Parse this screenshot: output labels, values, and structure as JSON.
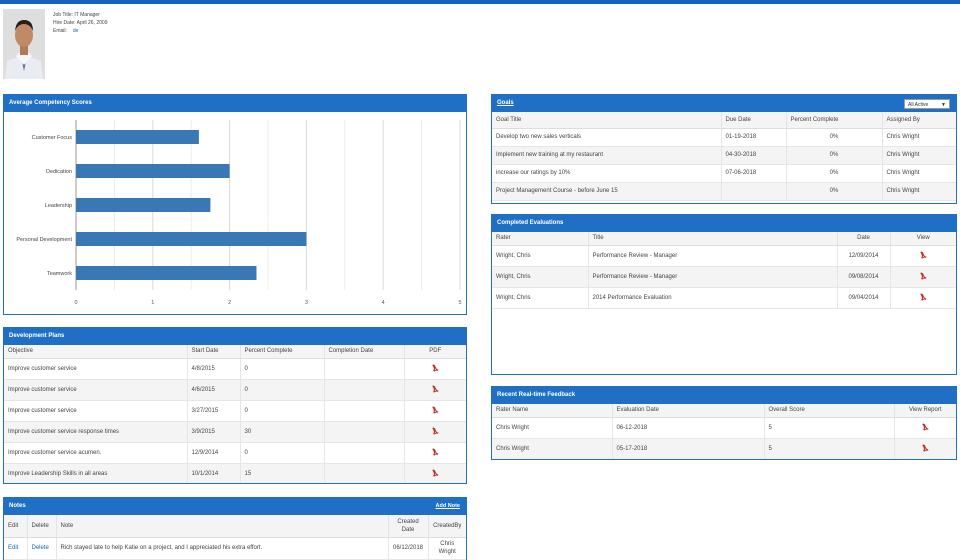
{
  "profile": {
    "job_title": "Job Title:  IT Manager",
    "hire_date": "Hire Date: April 26, 2009",
    "email_label": "Email:",
    "email_link": "de"
  },
  "competency": {
    "title": "Average Competency Scores"
  },
  "chart_data": {
    "type": "bar",
    "orientation": "horizontal",
    "title": "Average Competency Scores",
    "categories": [
      "Customer Focus",
      "Dedication",
      "Leadership",
      "Personal Development",
      "Teamwork"
    ],
    "values": [
      1.6,
      2.0,
      1.75,
      3.0,
      2.35
    ],
    "xlim": [
      0,
      5
    ],
    "xticks": [
      "0",
      "1",
      "2",
      "3",
      "4",
      "5"
    ],
    "grid": true,
    "bar_color": "#3a78b5"
  },
  "dev_plans": {
    "title": "Development Plans",
    "headers": [
      "Objective",
      "Start Date",
      "Percent Complete",
      "Completion Date",
      "PDF"
    ],
    "rows": [
      {
        "objective": "Improve customer service",
        "start": "4/8/2015",
        "pct": "0",
        "done": ""
      },
      {
        "objective": "Improve customer service",
        "start": "4/6/2015",
        "pct": "0",
        "done": ""
      },
      {
        "objective": "Improve customer service",
        "start": "3/27/2015",
        "pct": "0",
        "done": ""
      },
      {
        "objective": "Improve customer service response times",
        "start": "3/9/2015",
        "pct": "30",
        "done": ""
      },
      {
        "objective": "Improve customer service acumen.",
        "start": "12/9/2014",
        "pct": "0",
        "done": ""
      },
      {
        "objective": "Improve Leadership Skills in all areas",
        "start": "10/1/2014",
        "pct": "15",
        "done": ""
      }
    ]
  },
  "notes": {
    "title": "Notes",
    "add_link": "Add Note",
    "headers": [
      "Edit",
      "Delete",
      "Note",
      "Created Date",
      "CreatedBy"
    ],
    "rows": [
      {
        "edit": "Edit",
        "delete": "Delete",
        "note": "Rich stayed late to help Katie on a project, and I appreciated his extra effort.",
        "date": "06/12/2018",
        "by": "Chris Wright"
      }
    ]
  },
  "goals": {
    "title": "Goals",
    "filter_value": "All Active",
    "headers": [
      "Goal Title",
      "Due Date",
      "Percent Complete",
      "Assigned By"
    ],
    "rows": [
      {
        "title": "Develop two new sales verticals",
        "due": "01-19-2018",
        "pct": "0%",
        "by": "Chris Wright"
      },
      {
        "title": "Implement new training at my restaurant",
        "due": "04-30-2018",
        "pct": "0%",
        "by": "Chris Wright"
      },
      {
        "title": "increase our ratings by 10%",
        "due": "07-06-2018",
        "pct": "0%",
        "by": "Chris Wright"
      },
      {
        "title": "Project Management Course - before June 15",
        "due": "",
        "pct": "0%",
        "by": "Chris Wright"
      }
    ]
  },
  "evaluations": {
    "title": "Completed Evaluations",
    "headers": [
      "Rater",
      "Title",
      "Date",
      "View"
    ],
    "rows": [
      {
        "rater": "Wright, Chris",
        "title": "Performance Review - Manager",
        "date": "12/09/2014"
      },
      {
        "rater": "Wright, Chris",
        "title": "Performance Review - Manager",
        "date": "09/08/2014"
      },
      {
        "rater": "Wright, Chris",
        "title": "2014 Performance Evaluation",
        "date": "09/04/2014"
      }
    ]
  },
  "feedback": {
    "title": "Recent Real-time Feedback",
    "headers": [
      "Rater Name",
      "Evaluation Date",
      "Overall Score",
      "View Report"
    ],
    "rows": [
      {
        "rater": "Chris Wright",
        "date": "06-12-2018",
        "score": "5"
      },
      {
        "rater": "Chris Wright",
        "date": "05-17-2018",
        "score": "5"
      }
    ]
  },
  "icons": {
    "pdf": "pdf-icon"
  }
}
